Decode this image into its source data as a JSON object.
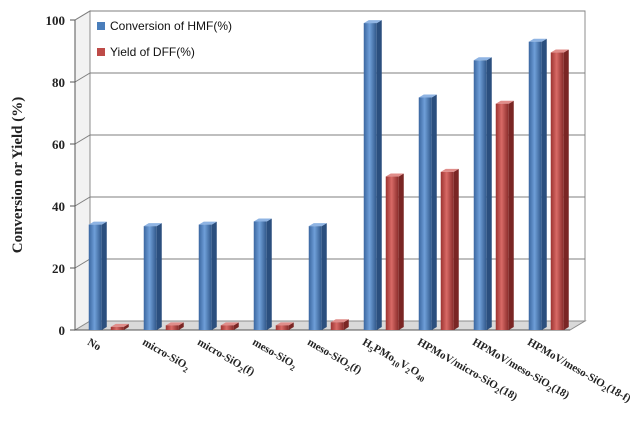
{
  "chart_data": {
    "type": "bar",
    "title": "",
    "xlabel": "",
    "ylabel": "Conversion or Yield (%)",
    "ylim": [
      0,
      100
    ],
    "yticks": [
      0,
      20,
      40,
      60,
      80,
      100
    ],
    "grid": true,
    "legend_position": "top-left",
    "categories": [
      {
        "text": "No",
        "sub": "",
        "tail": ""
      },
      {
        "text": "micro-SiO",
        "sub": "2",
        "tail": ""
      },
      {
        "text": "micro-SiO",
        "sub": "2",
        "tail": "(f)"
      },
      {
        "text": "meso-SiO",
        "sub": "2",
        "tail": ""
      },
      {
        "text": "meso-SiO",
        "sub": "2",
        "tail": "(f)"
      },
      {
        "text": "H5PMo10V2O40",
        "sub": "",
        "tail": ""
      },
      {
        "text": "HPMoV/micro-SiO",
        "sub": "2",
        "tail": "(18)"
      },
      {
        "text": "HPMoV/meso-SiO",
        "sub": "2",
        "tail": "(18)"
      },
      {
        "text": "HPMoV/meso-SiO",
        "sub": "2",
        "tail": "(18-f)"
      }
    ],
    "series": [
      {
        "name": "Conversion of HMF(%)",
        "color": "#4a7ebb",
        "values": [
          34,
          33.5,
          34,
          35,
          33.5,
          99,
          75,
          87,
          93
        ]
      },
      {
        "name": "Yield of DFF(%)",
        "color": "#be4b48",
        "values": [
          1,
          1.5,
          1.5,
          1.5,
          2.5,
          49.5,
          51,
          73,
          89.5
        ]
      }
    ]
  }
}
